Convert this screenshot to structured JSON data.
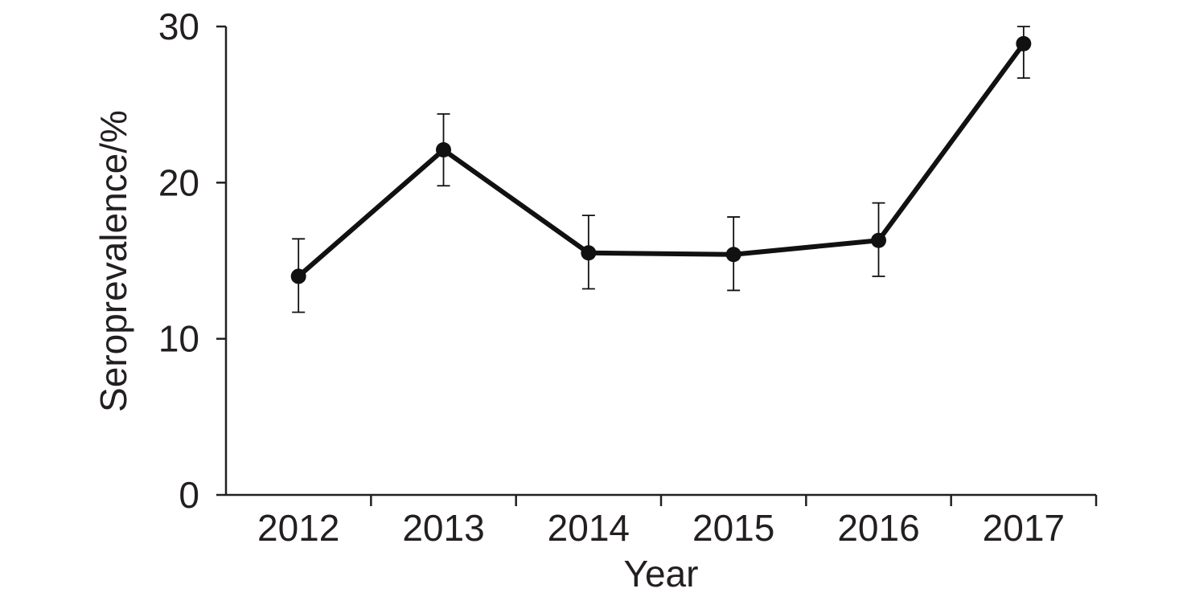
{
  "chart_data": {
    "type": "line",
    "title": "",
    "xlabel": "Year",
    "ylabel": "Seroprevalence/%",
    "categories": [
      "2012",
      "2013",
      "2014",
      "2015",
      "2016",
      "2017"
    ],
    "series": [
      {
        "values": [
          14.0,
          22.1,
          15.5,
          15.4,
          16.3,
          28.9
        ],
        "error_low": [
          11.7,
          19.8,
          13.2,
          13.1,
          14.0,
          26.7
        ],
        "error_high": [
          16.4,
          24.4,
          17.9,
          17.8,
          18.7,
          30.0
        ]
      }
    ],
    "ylim": [
      0,
      30
    ],
    "yticks": [
      "0",
      "10",
      "20",
      "30"
    ],
    "grid": false,
    "colors": {
      "line": "#111111",
      "axis": "#231f20",
      "text": "#231f20"
    }
  }
}
